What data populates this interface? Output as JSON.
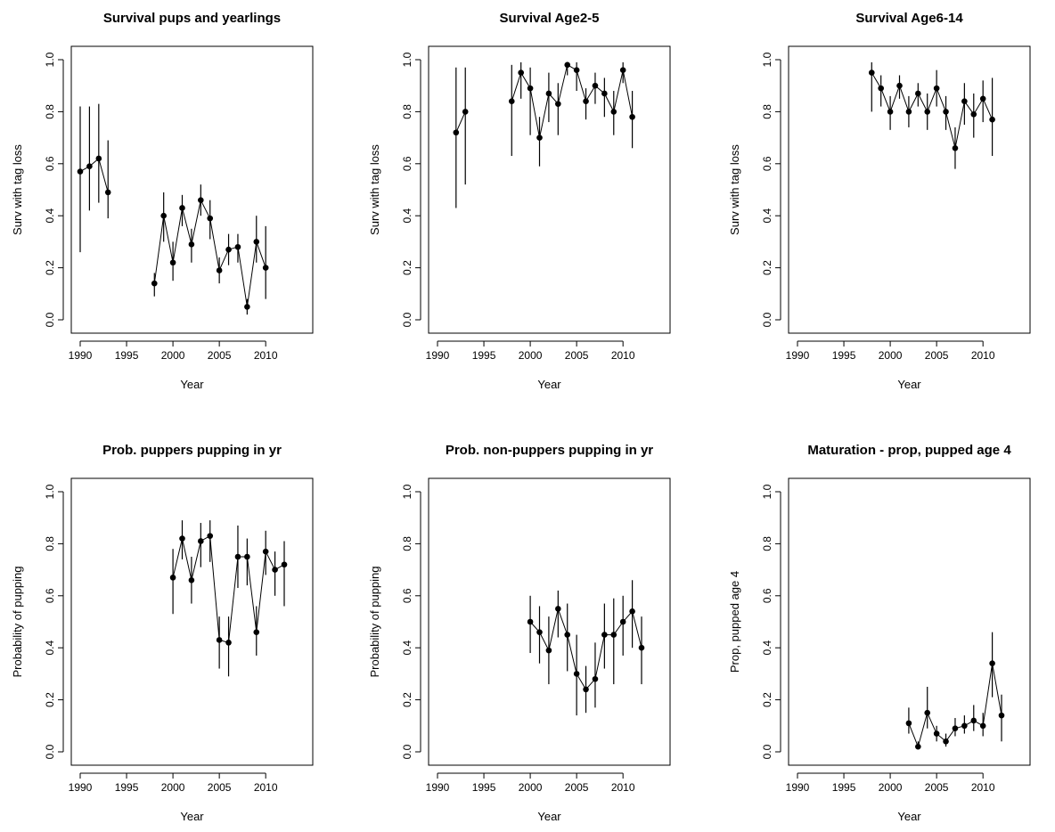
{
  "chart_data": [
    {
      "type": "scatter",
      "title": "Survival pups and yearlings",
      "xlabel": "Year",
      "ylabel": "Surv with tag loss",
      "xlim": [
        1990,
        2012
      ],
      "ylim": [
        0,
        1
      ],
      "xticks": [
        "1990",
        "1995",
        "2000",
        "2005",
        "2010"
      ],
      "yticks": [
        "0.0",
        "0.2",
        "0.4",
        "0.6",
        "0.8",
        "1.0"
      ],
      "error_bars": true,
      "points": [
        {
          "x": 1990,
          "y": 0.57,
          "lo": 0.26,
          "hi": 0.82
        },
        {
          "x": 1991,
          "y": 0.59,
          "lo": 0.42,
          "hi": 0.82
        },
        {
          "x": 1992,
          "y": 0.62,
          "lo": 0.45,
          "hi": 0.83
        },
        {
          "x": 1993,
          "y": 0.49,
          "lo": 0.39,
          "hi": 0.69
        },
        {
          "x": 1998,
          "y": 0.14,
          "lo": 0.09,
          "hi": 0.18
        },
        {
          "x": 1999,
          "y": 0.4,
          "lo": 0.3,
          "hi": 0.49
        },
        {
          "x": 2000,
          "y": 0.22,
          "lo": 0.15,
          "hi": 0.3
        },
        {
          "x": 2001,
          "y": 0.43,
          "lo": 0.36,
          "hi": 0.48
        },
        {
          "x": 2002,
          "y": 0.29,
          "lo": 0.22,
          "hi": 0.35
        },
        {
          "x": 2003,
          "y": 0.46,
          "lo": 0.4,
          "hi": 0.52
        },
        {
          "x": 2004,
          "y": 0.39,
          "lo": 0.31,
          "hi": 0.46
        },
        {
          "x": 2005,
          "y": 0.19,
          "lo": 0.14,
          "hi": 0.24
        },
        {
          "x": 2006,
          "y": 0.27,
          "lo": 0.21,
          "hi": 0.33
        },
        {
          "x": 2007,
          "y": 0.28,
          "lo": 0.22,
          "hi": 0.33
        },
        {
          "x": 2008,
          "y": 0.05,
          "lo": 0.02,
          "hi": 0.08
        },
        {
          "x": 2009,
          "y": 0.3,
          "lo": 0.22,
          "hi": 0.4
        },
        {
          "x": 2010,
          "y": 0.2,
          "lo": 0.08,
          "hi": 0.36
        }
      ]
    },
    {
      "type": "scatter",
      "title": "Survival Age2-5",
      "xlabel": "Year",
      "ylabel": "Surv with tag loss",
      "xlim": [
        1990,
        2012
      ],
      "ylim": [
        0,
        1
      ],
      "xticks": [
        "1990",
        "1995",
        "2000",
        "2005",
        "2010"
      ],
      "yticks": [
        "0.0",
        "0.2",
        "0.4",
        "0.6",
        "0.8",
        "1.0"
      ],
      "error_bars": true,
      "points": [
        {
          "x": 1992,
          "y": 0.72,
          "lo": 0.43,
          "hi": 0.97
        },
        {
          "x": 1993,
          "y": 0.8,
          "lo": 0.52,
          "hi": 0.97
        },
        {
          "x": 1998,
          "y": 0.84,
          "lo": 0.63,
          "hi": 0.98
        },
        {
          "x": 1999,
          "y": 0.95,
          "lo": 0.85,
          "hi": 0.99
        },
        {
          "x": 2000,
          "y": 0.89,
          "lo": 0.71,
          "hi": 0.97
        },
        {
          "x": 2001,
          "y": 0.7,
          "lo": 0.59,
          "hi": 0.78
        },
        {
          "x": 2002,
          "y": 0.87,
          "lo": 0.76,
          "hi": 0.95
        },
        {
          "x": 2003,
          "y": 0.83,
          "lo": 0.71,
          "hi": 0.91
        },
        {
          "x": 2004,
          "y": 0.98,
          "lo": 0.94,
          "hi": 0.99
        },
        {
          "x": 2005,
          "y": 0.96,
          "lo": 0.88,
          "hi": 0.99
        },
        {
          "x": 2006,
          "y": 0.84,
          "lo": 0.77,
          "hi": 0.89
        },
        {
          "x": 2007,
          "y": 0.9,
          "lo": 0.83,
          "hi": 0.95
        },
        {
          "x": 2008,
          "y": 0.87,
          "lo": 0.78,
          "hi": 0.93
        },
        {
          "x": 2009,
          "y": 0.8,
          "lo": 0.71,
          "hi": 0.88
        },
        {
          "x": 2010,
          "y": 0.96,
          "lo": 0.91,
          "hi": 0.99
        },
        {
          "x": 2011,
          "y": 0.78,
          "lo": 0.66,
          "hi": 0.88
        }
      ]
    },
    {
      "type": "scatter",
      "title": "Survival Age6-14",
      "xlabel": "Year",
      "ylabel": "Surv with tag loss",
      "xlim": [
        1990,
        2012
      ],
      "ylim": [
        0,
        1
      ],
      "xticks": [
        "1990",
        "1995",
        "2000",
        "2005",
        "2010"
      ],
      "yticks": [
        "0.0",
        "0.2",
        "0.4",
        "0.6",
        "0.8",
        "1.0"
      ],
      "error_bars": true,
      "points": [
        {
          "x": 1998,
          "y": 0.95,
          "lo": 0.8,
          "hi": 0.99
        },
        {
          "x": 1999,
          "y": 0.89,
          "lo": 0.82,
          "hi": 0.94
        },
        {
          "x": 2000,
          "y": 0.8,
          "lo": 0.73,
          "hi": 0.86
        },
        {
          "x": 2001,
          "y": 0.9,
          "lo": 0.85,
          "hi": 0.94
        },
        {
          "x": 2002,
          "y": 0.8,
          "lo": 0.74,
          "hi": 0.86
        },
        {
          "x": 2003,
          "y": 0.87,
          "lo": 0.82,
          "hi": 0.91
        },
        {
          "x": 2004,
          "y": 0.8,
          "lo": 0.73,
          "hi": 0.87
        },
        {
          "x": 2005,
          "y": 0.89,
          "lo": 0.82,
          "hi": 0.96
        },
        {
          "x": 2006,
          "y": 0.8,
          "lo": 0.73,
          "hi": 0.86
        },
        {
          "x": 2007,
          "y": 0.66,
          "lo": 0.58,
          "hi": 0.74
        },
        {
          "x": 2008,
          "y": 0.84,
          "lo": 0.75,
          "hi": 0.91
        },
        {
          "x": 2009,
          "y": 0.79,
          "lo": 0.7,
          "hi": 0.87
        },
        {
          "x": 2010,
          "y": 0.85,
          "lo": 0.76,
          "hi": 0.92
        },
        {
          "x": 2011,
          "y": 0.77,
          "lo": 0.63,
          "hi": 0.93
        }
      ]
    },
    {
      "type": "scatter",
      "title": "Prob. puppers pupping in yr",
      "xlabel": "Year",
      "ylabel": "Probability of pupping",
      "xlim": [
        1990,
        2012
      ],
      "ylim": [
        0,
        1
      ],
      "xticks": [
        "1990",
        "1995",
        "2000",
        "2005",
        "2010"
      ],
      "yticks": [
        "0.0",
        "0.2",
        "0.4",
        "0.6",
        "0.8",
        "1.0"
      ],
      "error_bars": true,
      "points": [
        {
          "x": 2000,
          "y": 0.67,
          "lo": 0.53,
          "hi": 0.78
        },
        {
          "x": 2001,
          "y": 0.82,
          "lo": 0.74,
          "hi": 0.89
        },
        {
          "x": 2002,
          "y": 0.66,
          "lo": 0.57,
          "hi": 0.75
        },
        {
          "x": 2003,
          "y": 0.81,
          "lo": 0.71,
          "hi": 0.88
        },
        {
          "x": 2004,
          "y": 0.83,
          "lo": 0.73,
          "hi": 0.89
        },
        {
          "x": 2005,
          "y": 0.43,
          "lo": 0.32,
          "hi": 0.52
        },
        {
          "x": 2006,
          "y": 0.42,
          "lo": 0.29,
          "hi": 0.52
        },
        {
          "x": 2007,
          "y": 0.75,
          "lo": 0.63,
          "hi": 0.87
        },
        {
          "x": 2008,
          "y": 0.75,
          "lo": 0.64,
          "hi": 0.82
        },
        {
          "x": 2009,
          "y": 0.46,
          "lo": 0.37,
          "hi": 0.56
        },
        {
          "x": 2010,
          "y": 0.77,
          "lo": 0.68,
          "hi": 0.85
        },
        {
          "x": 2011,
          "y": 0.7,
          "lo": 0.6,
          "hi": 0.77
        },
        {
          "x": 2012,
          "y": 0.72,
          "lo": 0.56,
          "hi": 0.81
        }
      ]
    },
    {
      "type": "scatter",
      "title": "Prob. non-puppers pupping in yr",
      "xlabel": "Year",
      "ylabel": "Probability of pupping",
      "xlim": [
        1990,
        2012
      ],
      "ylim": [
        0,
        1
      ],
      "xticks": [
        "1990",
        "1995",
        "2000",
        "2005",
        "2010"
      ],
      "yticks": [
        "0.0",
        "0.2",
        "0.4",
        "0.6",
        "0.8",
        "1.0"
      ],
      "error_bars": true,
      "points": [
        {
          "x": 2000,
          "y": 0.5,
          "lo": 0.38,
          "hi": 0.6
        },
        {
          "x": 2001,
          "y": 0.46,
          "lo": 0.34,
          "hi": 0.56
        },
        {
          "x": 2002,
          "y": 0.39,
          "lo": 0.26,
          "hi": 0.52
        },
        {
          "x": 2003,
          "y": 0.55,
          "lo": 0.44,
          "hi": 0.62
        },
        {
          "x": 2004,
          "y": 0.45,
          "lo": 0.31,
          "hi": 0.57
        },
        {
          "x": 2005,
          "y": 0.3,
          "lo": 0.14,
          "hi": 0.45
        },
        {
          "x": 2006,
          "y": 0.24,
          "lo": 0.15,
          "hi": 0.33
        },
        {
          "x": 2007,
          "y": 0.28,
          "lo": 0.17,
          "hi": 0.42
        },
        {
          "x": 2008,
          "y": 0.45,
          "lo": 0.32,
          "hi": 0.57
        },
        {
          "x": 2009,
          "y": 0.45,
          "lo": 0.26,
          "hi": 0.59
        },
        {
          "x": 2010,
          "y": 0.5,
          "lo": 0.37,
          "hi": 0.6
        },
        {
          "x": 2011,
          "y": 0.54,
          "lo": 0.4,
          "hi": 0.66
        },
        {
          "x": 2012,
          "y": 0.4,
          "lo": 0.26,
          "hi": 0.52
        }
      ]
    },
    {
      "type": "scatter",
      "title": "Maturation - prop, pupped age 4",
      "xlabel": "Year",
      "ylabel": "Prop, pupped age 4",
      "xlim": [
        1990,
        2012
      ],
      "ylim": [
        0,
        1
      ],
      "xticks": [
        "1990",
        "1995",
        "2000",
        "2005",
        "2010"
      ],
      "yticks": [
        "0.0",
        "0.2",
        "0.4",
        "0.6",
        "0.8",
        "1.0"
      ],
      "error_bars": true,
      "points": [
        {
          "x": 2002,
          "y": 0.11,
          "lo": 0.07,
          "hi": 0.17
        },
        {
          "x": 2003,
          "y": 0.02,
          "lo": 0.01,
          "hi": 0.04
        },
        {
          "x": 2004,
          "y": 0.15,
          "lo": 0.09,
          "hi": 0.25
        },
        {
          "x": 2005,
          "y": 0.07,
          "lo": 0.04,
          "hi": 0.1
        },
        {
          "x": 2006,
          "y": 0.04,
          "lo": 0.02,
          "hi": 0.07
        },
        {
          "x": 2007,
          "y": 0.09,
          "lo": 0.06,
          "hi": 0.13
        },
        {
          "x": 2008,
          "y": 0.1,
          "lo": 0.07,
          "hi": 0.14
        },
        {
          "x": 2009,
          "y": 0.12,
          "lo": 0.08,
          "hi": 0.18
        },
        {
          "x": 2010,
          "y": 0.1,
          "lo": 0.06,
          "hi": 0.15
        },
        {
          "x": 2011,
          "y": 0.34,
          "lo": 0.21,
          "hi": 0.46
        },
        {
          "x": 2012,
          "y": 0.14,
          "lo": 0.04,
          "hi": 0.22
        }
      ]
    }
  ]
}
